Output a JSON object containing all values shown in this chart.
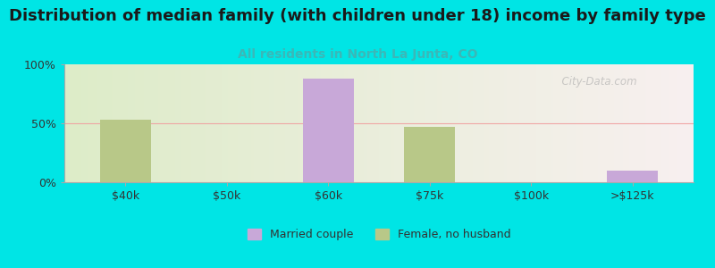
{
  "title": "Distribution of median family (with children under 18) income by family type",
  "subtitle": "All residents in North La Junta, CO",
  "background_color": "#00e5e5",
  "plot_bg_color_left": "#ddecc8",
  "plot_bg_color_right": "#f8f0f0",
  "categories": [
    "$40k",
    "$50k",
    "$60k",
    "$75k",
    "$100k",
    ">$125k"
  ],
  "married_couple": [
    0,
    0,
    88,
    0,
    0,
    10
  ],
  "female_no_husband": [
    53,
    0,
    0,
    47,
    0,
    0
  ],
  "married_color": "#c8a8d8",
  "female_color": "#b8c888",
  "ylim": [
    0,
    100
  ],
  "yticks": [
    0,
    50,
    100
  ],
  "ytick_labels": [
    "0%",
    "50%",
    "100%"
  ],
  "title_fontsize": 13,
  "subtitle_fontsize": 10,
  "subtitle_color": "#3ab8b8",
  "bar_width": 0.5,
  "watermark": "  City-Data.com"
}
